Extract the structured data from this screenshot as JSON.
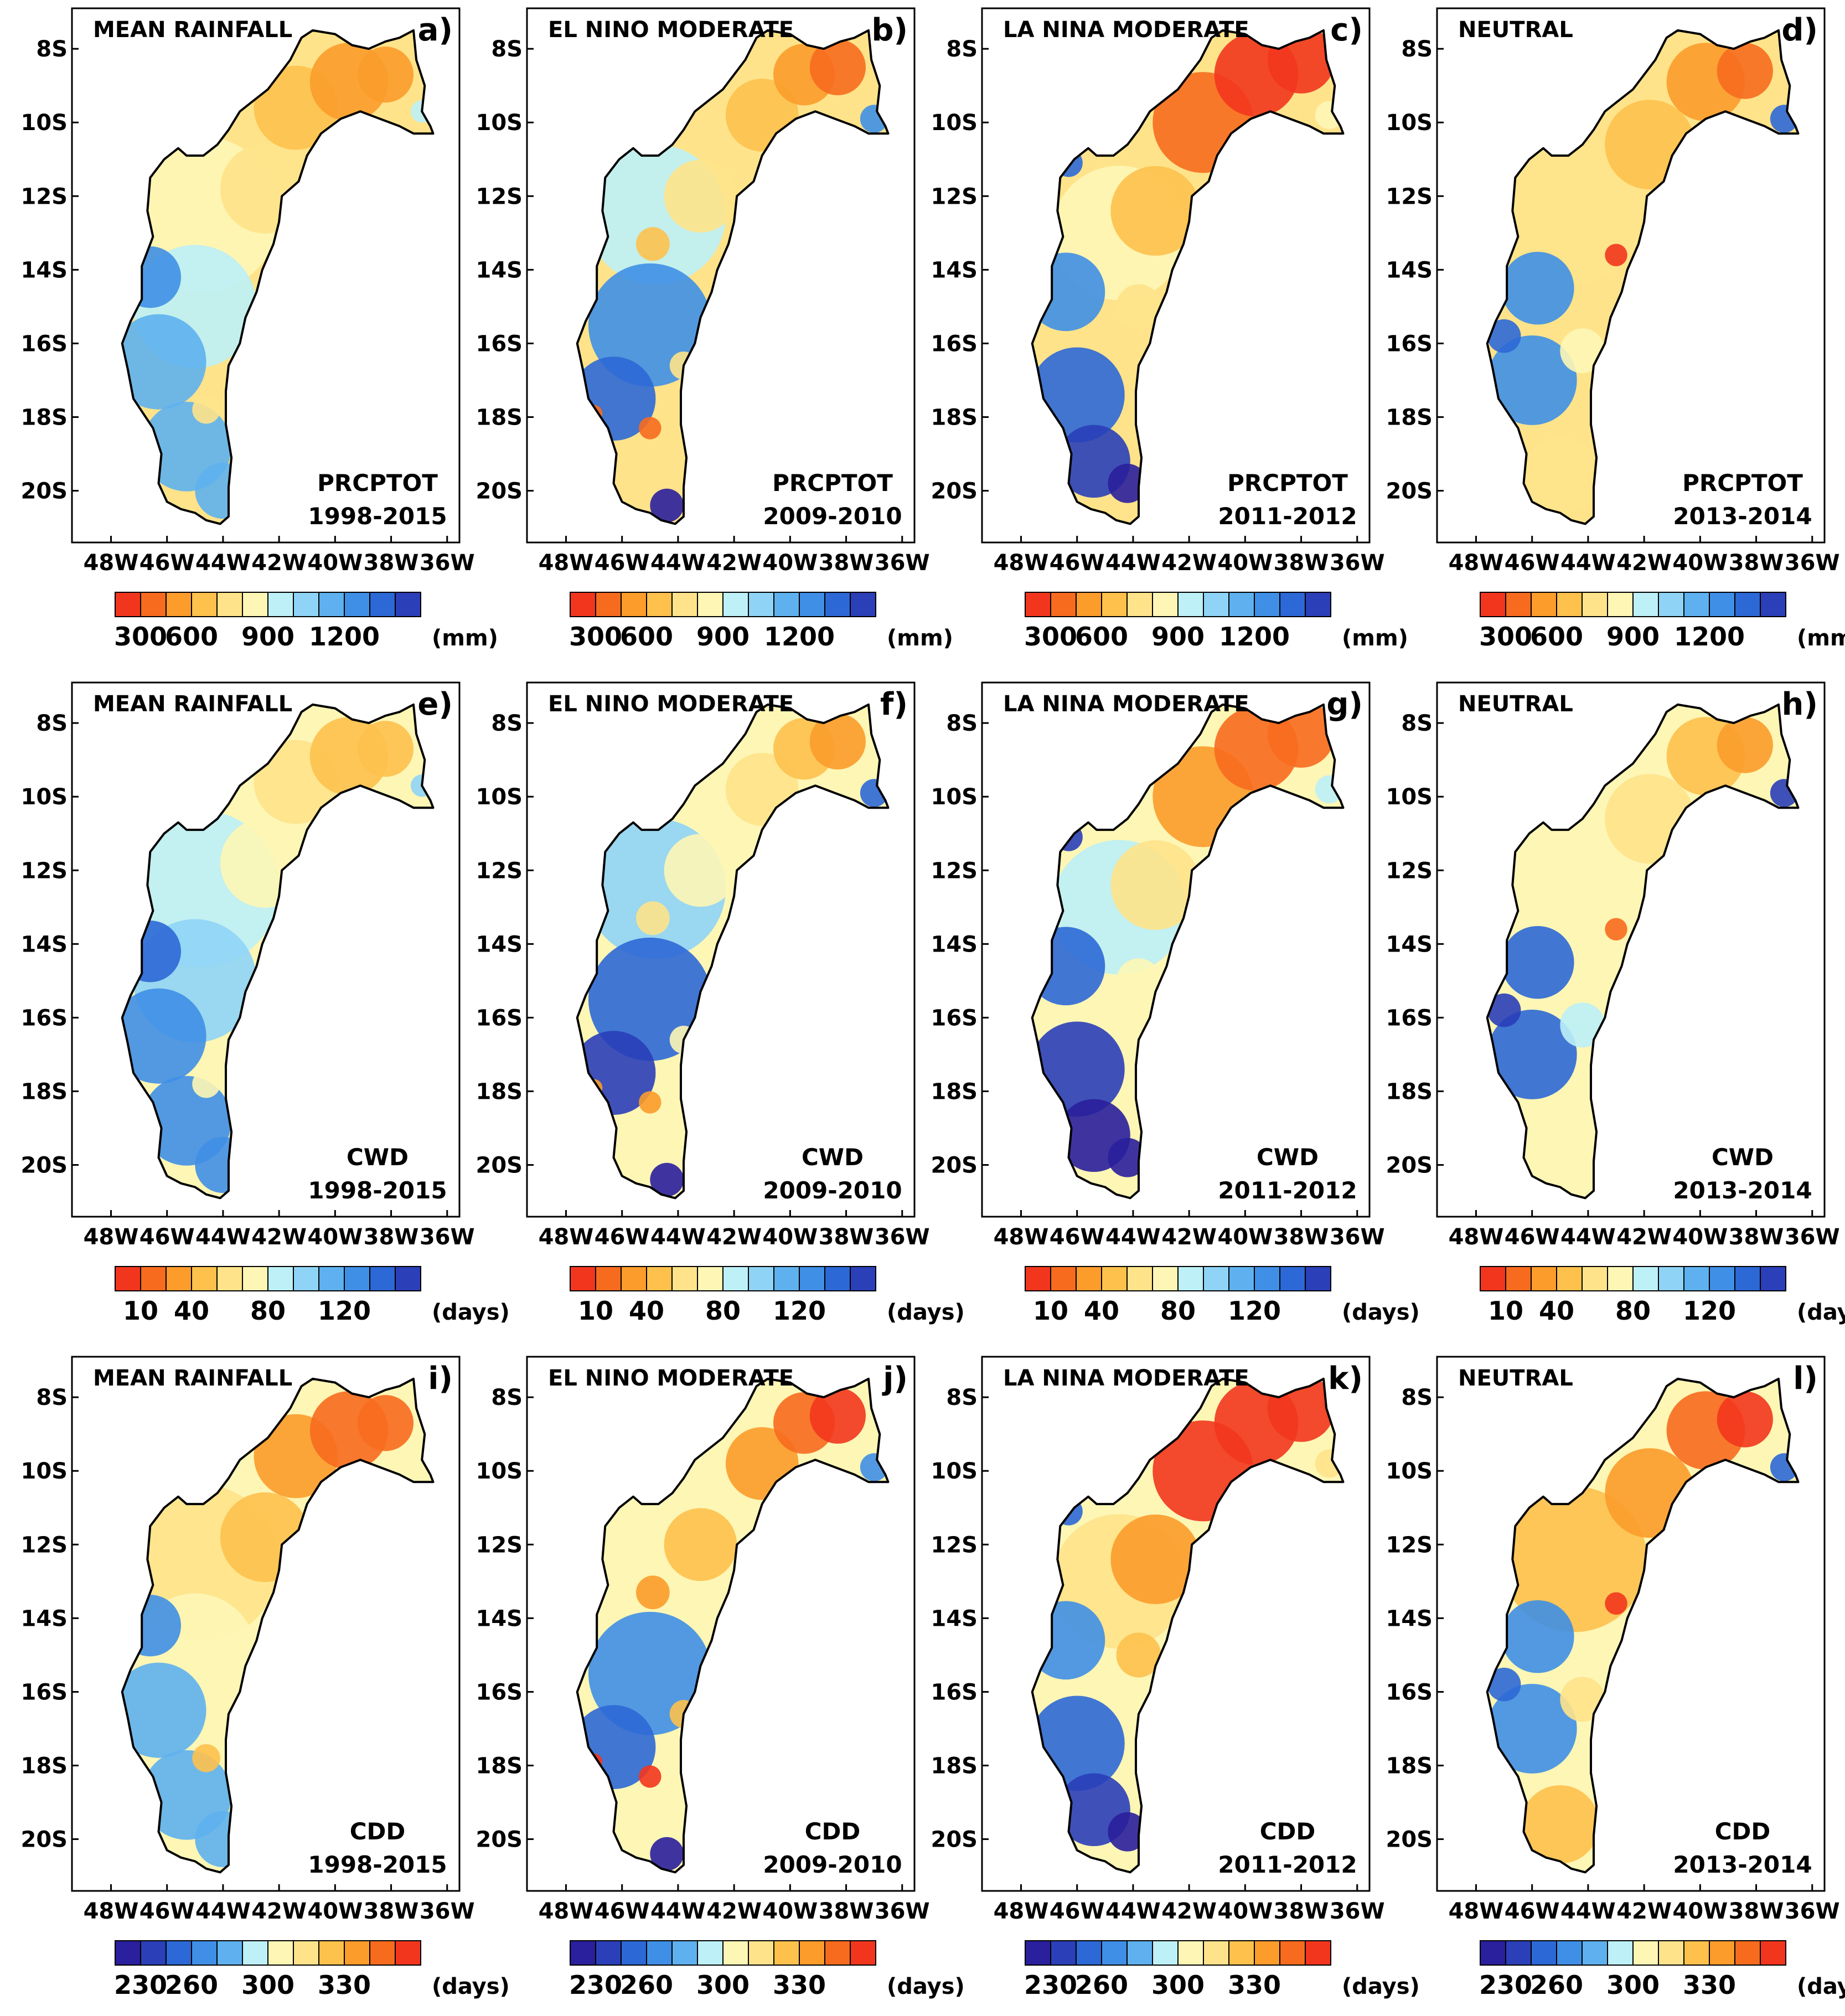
{
  "colors": {
    "basin_outline": "#000000",
    "frame": "#000000",
    "wet_ramp": [
      "#f2361d",
      "#f76b1e",
      "#fb9c2b",
      "#fdc14c",
      "#fee38a",
      "#fdf6b5",
      "#bdf0f7",
      "#8fd4f6",
      "#5eb1ee",
      "#3f8fe6",
      "#2c68d6",
      "#2a3fb8",
      "#2a1f9c"
    ],
    "dry_ramp": [
      "#2a1f9c",
      "#2a3fb8",
      "#2c68d6",
      "#3f8fe6",
      "#5eb1ee",
      "#bdf0f7",
      "#fdf6b5",
      "#fee38a",
      "#fdc14c",
      "#fb9c2b",
      "#f76b1e",
      "#f2361d"
    ]
  },
  "axes": {
    "x_ticks": [
      "48W",
      "46W",
      "44W",
      "42W",
      "40W",
      "38W",
      "36W"
    ],
    "y_ticks": [
      "8S",
      "10S",
      "12S",
      "14S",
      "16S",
      "18S",
      "20S"
    ]
  },
  "colorbars": {
    "prcptot": {
      "ticks": [
        "300",
        "600",
        "900",
        "1200"
      ],
      "unit": "(mm)",
      "ramp": "wet"
    },
    "cwd": {
      "ticks": [
        "10",
        "40",
        "80",
        "120"
      ],
      "unit": "(days)",
      "ramp": "wet"
    },
    "cdd": {
      "ticks": [
        "230",
        "260",
        "300",
        "330"
      ],
      "unit": "(days)",
      "ramp": "dry"
    }
  },
  "panels": [
    {
      "letter": "a)",
      "scenario": "MEAN RAINFALL",
      "index": "PRCPTOT",
      "period": "1998-2015",
      "colorbar": "prcptot",
      "pattern": "mean"
    },
    {
      "letter": "b)",
      "scenario": "EL NINO MODERATE",
      "index": "PRCPTOT",
      "period": "2009-2010",
      "colorbar": "prcptot",
      "pattern": "elnino"
    },
    {
      "letter": "c)",
      "scenario": "LA NINA MODERATE",
      "index": "PRCPTOT",
      "period": "2011-2012",
      "colorbar": "prcptot",
      "pattern": "lanina"
    },
    {
      "letter": "d)",
      "scenario": "NEUTRAL",
      "index": "PRCPTOT",
      "period": "2013-2014",
      "colorbar": "prcptot",
      "pattern": "neutral"
    },
    {
      "letter": "e)",
      "scenario": "MEAN RAINFALL",
      "index": "CWD",
      "period": "1998-2015",
      "colorbar": "cwd",
      "pattern": "mean"
    },
    {
      "letter": "f)",
      "scenario": "EL NINO MODERATE",
      "index": "CWD",
      "period": "2009-2010",
      "colorbar": "cwd",
      "pattern": "elnino"
    },
    {
      "letter": "g)",
      "scenario": "LA NINA MODERATE",
      "index": "CWD",
      "period": "2011-2012",
      "colorbar": "cwd",
      "pattern": "lanina"
    },
    {
      "letter": "h)",
      "scenario": "NEUTRAL",
      "index": "CWD",
      "period": "2013-2014",
      "colorbar": "cwd",
      "pattern": "neutral"
    },
    {
      "letter": "i)",
      "scenario": "MEAN RAINFALL",
      "index": "CDD",
      "period": "1998-2015",
      "colorbar": "cdd",
      "pattern": "mean"
    },
    {
      "letter": "j)",
      "scenario": "EL NINO MODERATE",
      "index": "CDD",
      "period": "2009-2010",
      "colorbar": "cdd",
      "pattern": "elnino"
    },
    {
      "letter": "k)",
      "scenario": "LA NINA MODERATE",
      "index": "CDD",
      "period": "2011-2012",
      "colorbar": "cdd",
      "pattern": "lanina"
    },
    {
      "letter": "l)",
      "scenario": "NEUTRAL",
      "index": "CDD",
      "period": "2013-2014",
      "colorbar": "cdd",
      "pattern": "neutral"
    }
  ]
}
